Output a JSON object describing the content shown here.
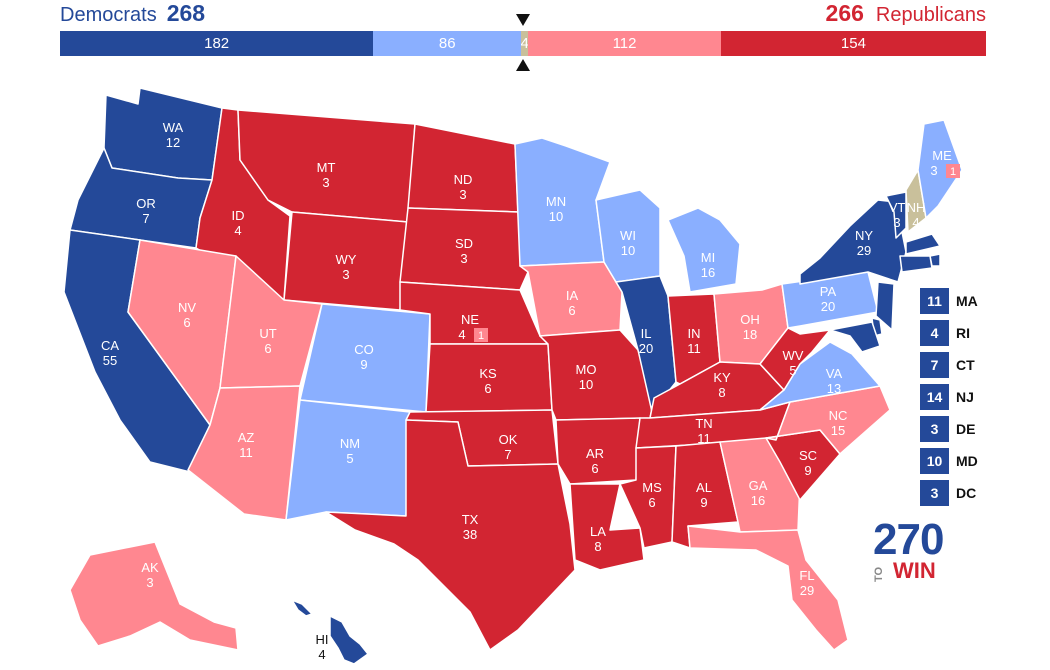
{
  "colors": {
    "safe_d": "#244999",
    "lean_d": "#8AAFFF",
    "tossup": "#C9C09B",
    "lean_r": "#FF8790",
    "safe_r": "#D22532"
  },
  "header": {
    "dem_label": "Democrats",
    "dem_total": "268",
    "rep_total": "266",
    "rep_label": "Republicans"
  },
  "tally": [
    {
      "value": 182,
      "color": "#244999"
    },
    {
      "value": 86,
      "color": "#8AAFFF"
    },
    {
      "value": 4,
      "color": "#C9C09B"
    },
    {
      "value": 112,
      "color": "#FF8790"
    },
    {
      "value": 154,
      "color": "#D22532"
    }
  ],
  "states": [
    {
      "abbr": "WA",
      "ev": "12",
      "rating": "safe_d"
    },
    {
      "abbr": "OR",
      "ev": "7",
      "rating": "safe_d"
    },
    {
      "abbr": "CA",
      "ev": "55",
      "rating": "safe_d"
    },
    {
      "abbr": "ID",
      "ev": "4",
      "rating": "safe_r"
    },
    {
      "abbr": "NV",
      "ev": "6",
      "rating": "lean_r"
    },
    {
      "abbr": "MT",
      "ev": "3",
      "rating": "safe_r"
    },
    {
      "abbr": "WY",
      "ev": "3",
      "rating": "safe_r"
    },
    {
      "abbr": "UT",
      "ev": "6",
      "rating": "lean_r"
    },
    {
      "abbr": "AZ",
      "ev": "11",
      "rating": "lean_r"
    },
    {
      "abbr": "CO",
      "ev": "9",
      "rating": "lean_d"
    },
    {
      "abbr": "NM",
      "ev": "5",
      "rating": "lean_d"
    },
    {
      "abbr": "ND",
      "ev": "3",
      "rating": "safe_r"
    },
    {
      "abbr": "SD",
      "ev": "3",
      "rating": "safe_r"
    },
    {
      "abbr": "NE",
      "ev": "4",
      "rating": "safe_r",
      "district_ev": "1",
      "district_rating": "lean_r"
    },
    {
      "abbr": "KS",
      "ev": "6",
      "rating": "safe_r"
    },
    {
      "abbr": "OK",
      "ev": "7",
      "rating": "safe_r"
    },
    {
      "abbr": "TX",
      "ev": "38",
      "rating": "safe_r"
    },
    {
      "abbr": "MN",
      "ev": "10",
      "rating": "lean_d"
    },
    {
      "abbr": "IA",
      "ev": "6",
      "rating": "lean_r"
    },
    {
      "abbr": "MO",
      "ev": "10",
      "rating": "safe_r"
    },
    {
      "abbr": "AR",
      "ev": "6",
      "rating": "safe_r"
    },
    {
      "abbr": "LA",
      "ev": "8",
      "rating": "safe_r"
    },
    {
      "abbr": "WI",
      "ev": "10",
      "rating": "lean_d"
    },
    {
      "abbr": "IL",
      "ev": "20",
      "rating": "safe_d"
    },
    {
      "abbr": "MI",
      "ev": "16",
      "rating": "lean_d"
    },
    {
      "abbr": "IN",
      "ev": "11",
      "rating": "safe_r"
    },
    {
      "abbr": "OH",
      "ev": "18",
      "rating": "lean_r"
    },
    {
      "abbr": "KY",
      "ev": "8",
      "rating": "safe_r"
    },
    {
      "abbr": "TN",
      "ev": "11",
      "rating": "safe_r"
    },
    {
      "abbr": "MS",
      "ev": "6",
      "rating": "safe_r"
    },
    {
      "abbr": "AL",
      "ev": "9",
      "rating": "safe_r"
    },
    {
      "abbr": "GA",
      "ev": "16",
      "rating": "lean_r"
    },
    {
      "abbr": "FL",
      "ev": "29",
      "rating": "lean_r"
    },
    {
      "abbr": "SC",
      "ev": "9",
      "rating": "safe_r"
    },
    {
      "abbr": "NC",
      "ev": "15",
      "rating": "lean_r"
    },
    {
      "abbr": "VA",
      "ev": "13",
      "rating": "lean_d"
    },
    {
      "abbr": "WV",
      "ev": "5",
      "rating": "safe_r"
    },
    {
      "abbr": "PA",
      "ev": "20",
      "rating": "lean_d"
    },
    {
      "abbr": "NY",
      "ev": "29",
      "rating": "safe_d"
    },
    {
      "abbr": "VT",
      "ev": "3",
      "rating": "safe_d"
    },
    {
      "abbr": "NH",
      "ev": "4",
      "rating": "tossup"
    },
    {
      "abbr": "ME",
      "ev": "3",
      "rating": "lean_d",
      "district_ev": "1",
      "district_rating": "lean_r"
    },
    {
      "abbr": "AK",
      "ev": "3",
      "rating": "lean_r"
    },
    {
      "abbr": "HI",
      "ev": "4",
      "rating": "safe_d"
    }
  ],
  "small_states": [
    {
      "abbr": "MA",
      "ev": "11",
      "rating": "safe_d"
    },
    {
      "abbr": "RI",
      "ev": "4",
      "rating": "safe_d"
    },
    {
      "abbr": "CT",
      "ev": "7",
      "rating": "safe_d"
    },
    {
      "abbr": "NJ",
      "ev": "14",
      "rating": "safe_d"
    },
    {
      "abbr": "DE",
      "ev": "3",
      "rating": "safe_d"
    },
    {
      "abbr": "MD",
      "ev": "10",
      "rating": "safe_d"
    },
    {
      "abbr": "DC",
      "ev": "3",
      "rating": "safe_d"
    }
  ],
  "logo": {
    "number": "270",
    "to": "TO",
    "win": "WIN"
  }
}
